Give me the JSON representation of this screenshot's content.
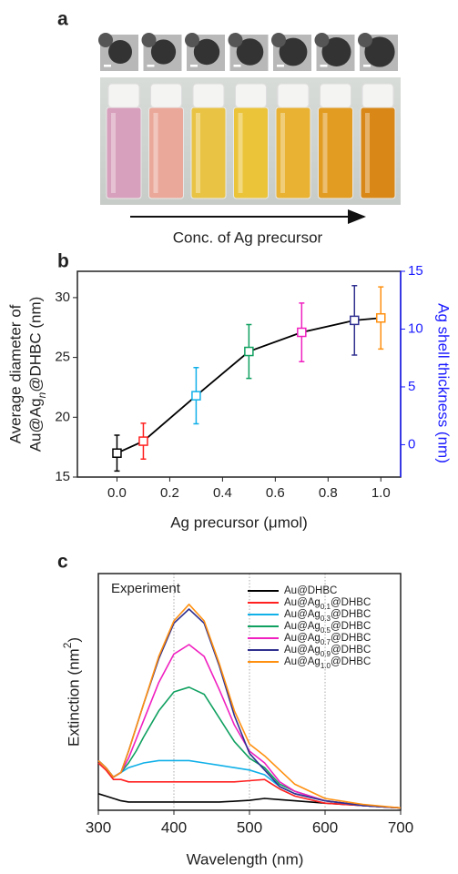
{
  "panel_a": {
    "label": "a",
    "caption": "Conc. of Ag precursor"
  },
  "chart_data": [
    {
      "type": "errorbar",
      "panel_label": "b",
      "xlabel": "Ag precursor (μmol)",
      "ylabel": [
        "Average diameter of",
        "Au@Agn@DHBC (nm)"
      ],
      "y2label": "Ag shell thickness (nm)",
      "y2color": "#1a1aff",
      "x": [
        0.0,
        0.1,
        0.3,
        0.5,
        0.7,
        0.9,
        1.0
      ],
      "values": [
        17.0,
        18.0,
        21.8,
        25.5,
        27.1,
        28.1,
        28.3
      ],
      "errors": [
        1.5,
        1.5,
        2.35,
        2.25,
        2.45,
        2.9,
        2.6
      ],
      "colors": [
        "#000000",
        "#ff2020",
        "#10b0e8",
        "#10a060",
        "#f020c0",
        "#303090",
        "#ff9010"
      ],
      "line_color": "#000000",
      "xlim": [
        -0.15,
        1.075
      ],
      "ylim": [
        15,
        32.2
      ],
      "y2lim": [
        -2.8,
        15
      ],
      "xticks": [
        {
          "value": 0,
          "label": "0.0"
        },
        0.2,
        0.4,
        0.6,
        0.8,
        {
          "value": 1,
          "label": "1.0"
        }
      ],
      "yticks": [
        15,
        20,
        25,
        30
      ],
      "y2ticks": [
        0,
        5,
        10,
        15
      ]
    },
    {
      "type": "line",
      "panel_label": "c",
      "xlabel": "Wavelength (nm)",
      "ylabel": "Extinction (nm2)",
      "annotation": "Experiment",
      "legend": "upper right",
      "grid_x": true,
      "x": [
        300,
        310,
        320,
        330,
        340,
        350,
        360,
        380,
        400,
        420,
        440,
        460,
        480,
        500,
        520,
        540,
        560,
        600,
        650,
        700
      ],
      "series": [
        {
          "name": "Au@DHBC",
          "color": "#000000",
          "values": [
            7,
            6,
            5,
            4,
            3.5,
            3.5,
            3.5,
            3.5,
            3.5,
            3.5,
            3.5,
            3.5,
            3.8,
            4.2,
            5,
            4.5,
            4,
            3,
            2,
            1
          ]
        },
        {
          "name": "Au@Ag0.1@DHBC",
          "color": "#ff2020",
          "values": [
            20,
            17,
            13,
            13,
            12,
            12,
            12,
            12,
            12,
            12,
            12,
            12,
            12,
            12.5,
            13,
            9,
            6,
            3,
            2,
            1
          ]
        },
        {
          "name": "Au@Ag0.3@DHBC",
          "color": "#10b0e8",
          "values": [
            21,
            18,
            14,
            16,
            18,
            19,
            20,
            21,
            21,
            21,
            20,
            19,
            18,
            17,
            15,
            10,
            7,
            4,
            2,
            1
          ]
        },
        {
          "name": "Au@Ag0.5@DHBC",
          "color": "#10a060",
          "values": [
            21,
            18,
            14,
            16,
            20,
            25,
            31,
            42,
            50,
            52,
            49,
            39,
            29,
            22,
            18,
            11,
            8,
            4,
            2,
            1
          ]
        },
        {
          "name": "Au@Ag0.7@DHBC",
          "color": "#f020c0",
          "values": [
            21,
            18,
            14,
            16,
            22,
            30,
            38,
            54,
            66,
            70,
            65,
            51,
            36,
            25,
            20,
            12,
            8,
            4,
            2,
            1
          ]
        },
        {
          "name": "Au@Ag0.9@DHBC",
          "color": "#303090",
          "values": [
            21,
            18,
            14,
            16,
            25,
            35,
            45,
            64,
            79,
            85,
            79,
            61,
            40,
            24,
            17,
            10,
            7,
            4,
            2,
            1
          ]
        },
        {
          "name": "Au@Ag1.0@DHBC",
          "color": "#ff9010",
          "values": [
            21,
            18,
            14,
            16,
            25,
            35,
            45,
            65,
            80,
            87,
            80,
            62,
            42,
            28,
            23,
            17,
            11,
            5,
            2.5,
            1
          ]
        }
      ],
      "xlim": [
        300,
        700
      ],
      "ylim": [
        0,
        100
      ],
      "xticks": [
        300,
        400,
        500,
        600,
        700
      ]
    }
  ]
}
